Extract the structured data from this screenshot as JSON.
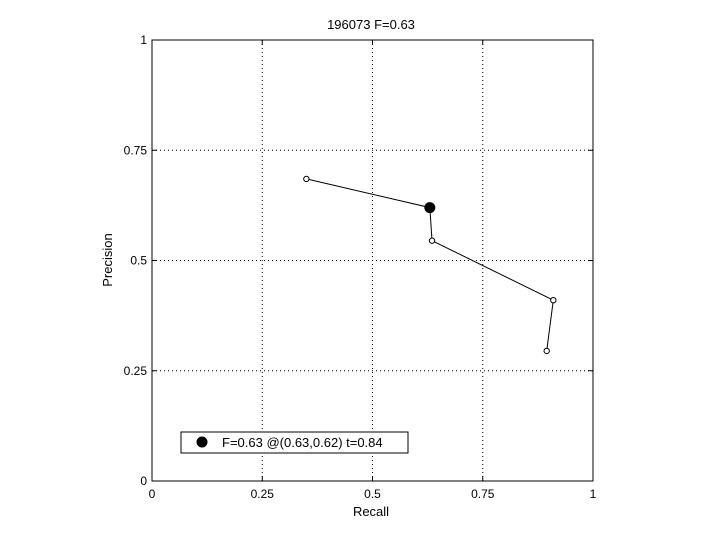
{
  "chart_data": {
    "type": "line",
    "title": "196073 F=0.63",
    "xlabel": "Recall",
    "ylabel": "Precision",
    "xlim": [
      0,
      1
    ],
    "ylim": [
      0,
      1
    ],
    "grid": true,
    "xticks": [
      0,
      0.25,
      0.5,
      0.75,
      1
    ],
    "yticks": [
      0,
      0.25,
      0.5,
      0.75,
      1
    ],
    "xtick_labels": [
      "0",
      "0.25",
      "0.5",
      "0.75",
      "1"
    ],
    "ytick_labels": [
      "0",
      "0.25",
      "0.5",
      "0.75",
      "1"
    ],
    "series": [
      {
        "points": [
          {
            "x": 0.35,
            "y": 0.685
          },
          {
            "x": 0.63,
            "y": 0.62
          },
          {
            "x": 0.635,
            "y": 0.545
          },
          {
            "x": 0.91,
            "y": 0.41
          },
          {
            "x": 0.895,
            "y": 0.295
          }
        ],
        "marker": "open-circle",
        "color": "#000000"
      }
    ],
    "highlight": {
      "x": 0.63,
      "y": 0.62,
      "marker": "filled-circle",
      "color": "#000000"
    },
    "legend": {
      "placement": "bottom-left",
      "entries": [
        {
          "label": "F=0.63 @(0.63,0.62) t=0.84",
          "marker": "filled-circle"
        }
      ]
    }
  }
}
